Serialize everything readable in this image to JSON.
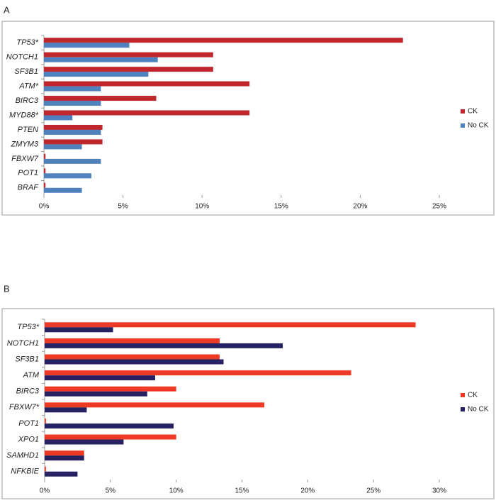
{
  "chart_data": [
    {
      "type": "bar",
      "orientation": "horizontal",
      "panel": "A",
      "categories": [
        "TP53*",
        "NOTCH1",
        "SF3B1",
        "ATM*",
        "BIRC3",
        "MYD88*",
        "PTEN",
        "ZMYM3",
        "FBXW7",
        "POT1",
        "BRAF"
      ],
      "series": [
        {
          "name": "CK",
          "color": "#c0272d",
          "values": [
            22.7,
            10.7,
            10.7,
            13.0,
            7.1,
            13.0,
            3.7,
            3.7,
            0.1,
            0.1,
            0.1
          ]
        },
        {
          "name": "No CK",
          "color": "#4f81bd",
          "values": [
            5.4,
            7.2,
            6.6,
            3.6,
            3.6,
            1.8,
            3.6,
            2.4,
            3.6,
            3.0,
            2.4
          ]
        }
      ],
      "xlim": [
        0,
        25
      ],
      "xticks": [
        {
          "value": 0,
          "label": "0%"
        },
        {
          "value": 5,
          "label": "5%"
        },
        {
          "value": 10,
          "label": "10%"
        },
        {
          "value": 15,
          "label": "15%"
        },
        {
          "value": 20,
          "label": "20%"
        },
        {
          "value": 25,
          "label": "25%"
        }
      ],
      "legend": "right"
    },
    {
      "type": "bar",
      "orientation": "horizontal",
      "panel": "B",
      "categories": [
        "TP53*",
        "NOTCH1",
        "SF3B1",
        "ATM",
        "BIRC3",
        "FBXW7*",
        "POT1",
        "XPO1",
        "SAMHD1",
        "NFKBIE"
      ],
      "series": [
        {
          "name": "CK",
          "color": "#ee3a24",
          "values": [
            28.2,
            13.3,
            13.3,
            23.3,
            10.0,
            16.7,
            0.1,
            10.0,
            3.0,
            0.1
          ]
        },
        {
          "name": "No CK",
          "color": "#262262",
          "values": [
            5.2,
            18.1,
            13.6,
            8.4,
            7.8,
            3.2,
            9.8,
            6.0,
            3.0,
            2.5
          ]
        }
      ],
      "xlim": [
        0,
        30
      ],
      "xticks": [
        {
          "value": 0,
          "label": "0%"
        },
        {
          "value": 5,
          "label": "5%"
        },
        {
          "value": 10,
          "label": "10%"
        },
        {
          "value": 15,
          "label": "15%"
        },
        {
          "value": 20,
          "label": "20%"
        },
        {
          "value": 25,
          "label": "25%"
        },
        {
          "value": 30,
          "label": "30%"
        }
      ],
      "legend": "right"
    }
  ]
}
